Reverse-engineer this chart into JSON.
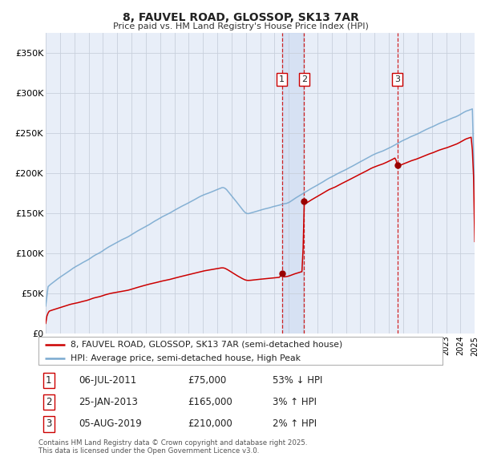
{
  "title": "8, FAUVEL ROAD, GLOSSOP, SK13 7AR",
  "subtitle": "Price paid vs. HM Land Registry's House Price Index (HPI)",
  "background_color": "#ffffff",
  "plot_background": "#e8eef8",
  "grid_color": "#c8d0dc",
  "sale_color": "#cc0000",
  "hpi_color": "#7aaad0",
  "highlight_bg": "#c8d8f0",
  "sale_marker_color": "#990000",
  "x_start_year": 1995,
  "x_end_year": 2025,
  "y_min": 0,
  "y_max": 375000,
  "y_ticks": [
    0,
    50000,
    100000,
    150000,
    200000,
    250000,
    300000,
    350000
  ],
  "y_tick_labels": [
    "£0",
    "£50K",
    "£100K",
    "£150K",
    "£200K",
    "£250K",
    "£300K",
    "£350K"
  ],
  "sales": [
    {
      "date_year": 2011.52,
      "price": 75000,
      "label": "1"
    },
    {
      "date_year": 2013.07,
      "price": 165000,
      "label": "2"
    },
    {
      "date_year": 2019.59,
      "price": 210000,
      "label": "3"
    }
  ],
  "sale_info": [
    {
      "num": "1",
      "date": "06-JUL-2011",
      "price": "£75,000",
      "pct": "53% ↓ HPI"
    },
    {
      "num": "2",
      "date": "25-JAN-2013",
      "price": "£165,000",
      "pct": "3% ↑ HPI"
    },
    {
      "num": "3",
      "date": "05-AUG-2019",
      "price": "£210,000",
      "pct": "2% ↑ HPI"
    }
  ],
  "legend_sale": "8, FAUVEL ROAD, GLOSSOP, SK13 7AR (semi-detached house)",
  "legend_hpi": "HPI: Average price, semi-detached house, High Peak",
  "footer": "Contains HM Land Registry data © Crown copyright and database right 2025.\nThis data is licensed under the Open Government Licence v3.0."
}
